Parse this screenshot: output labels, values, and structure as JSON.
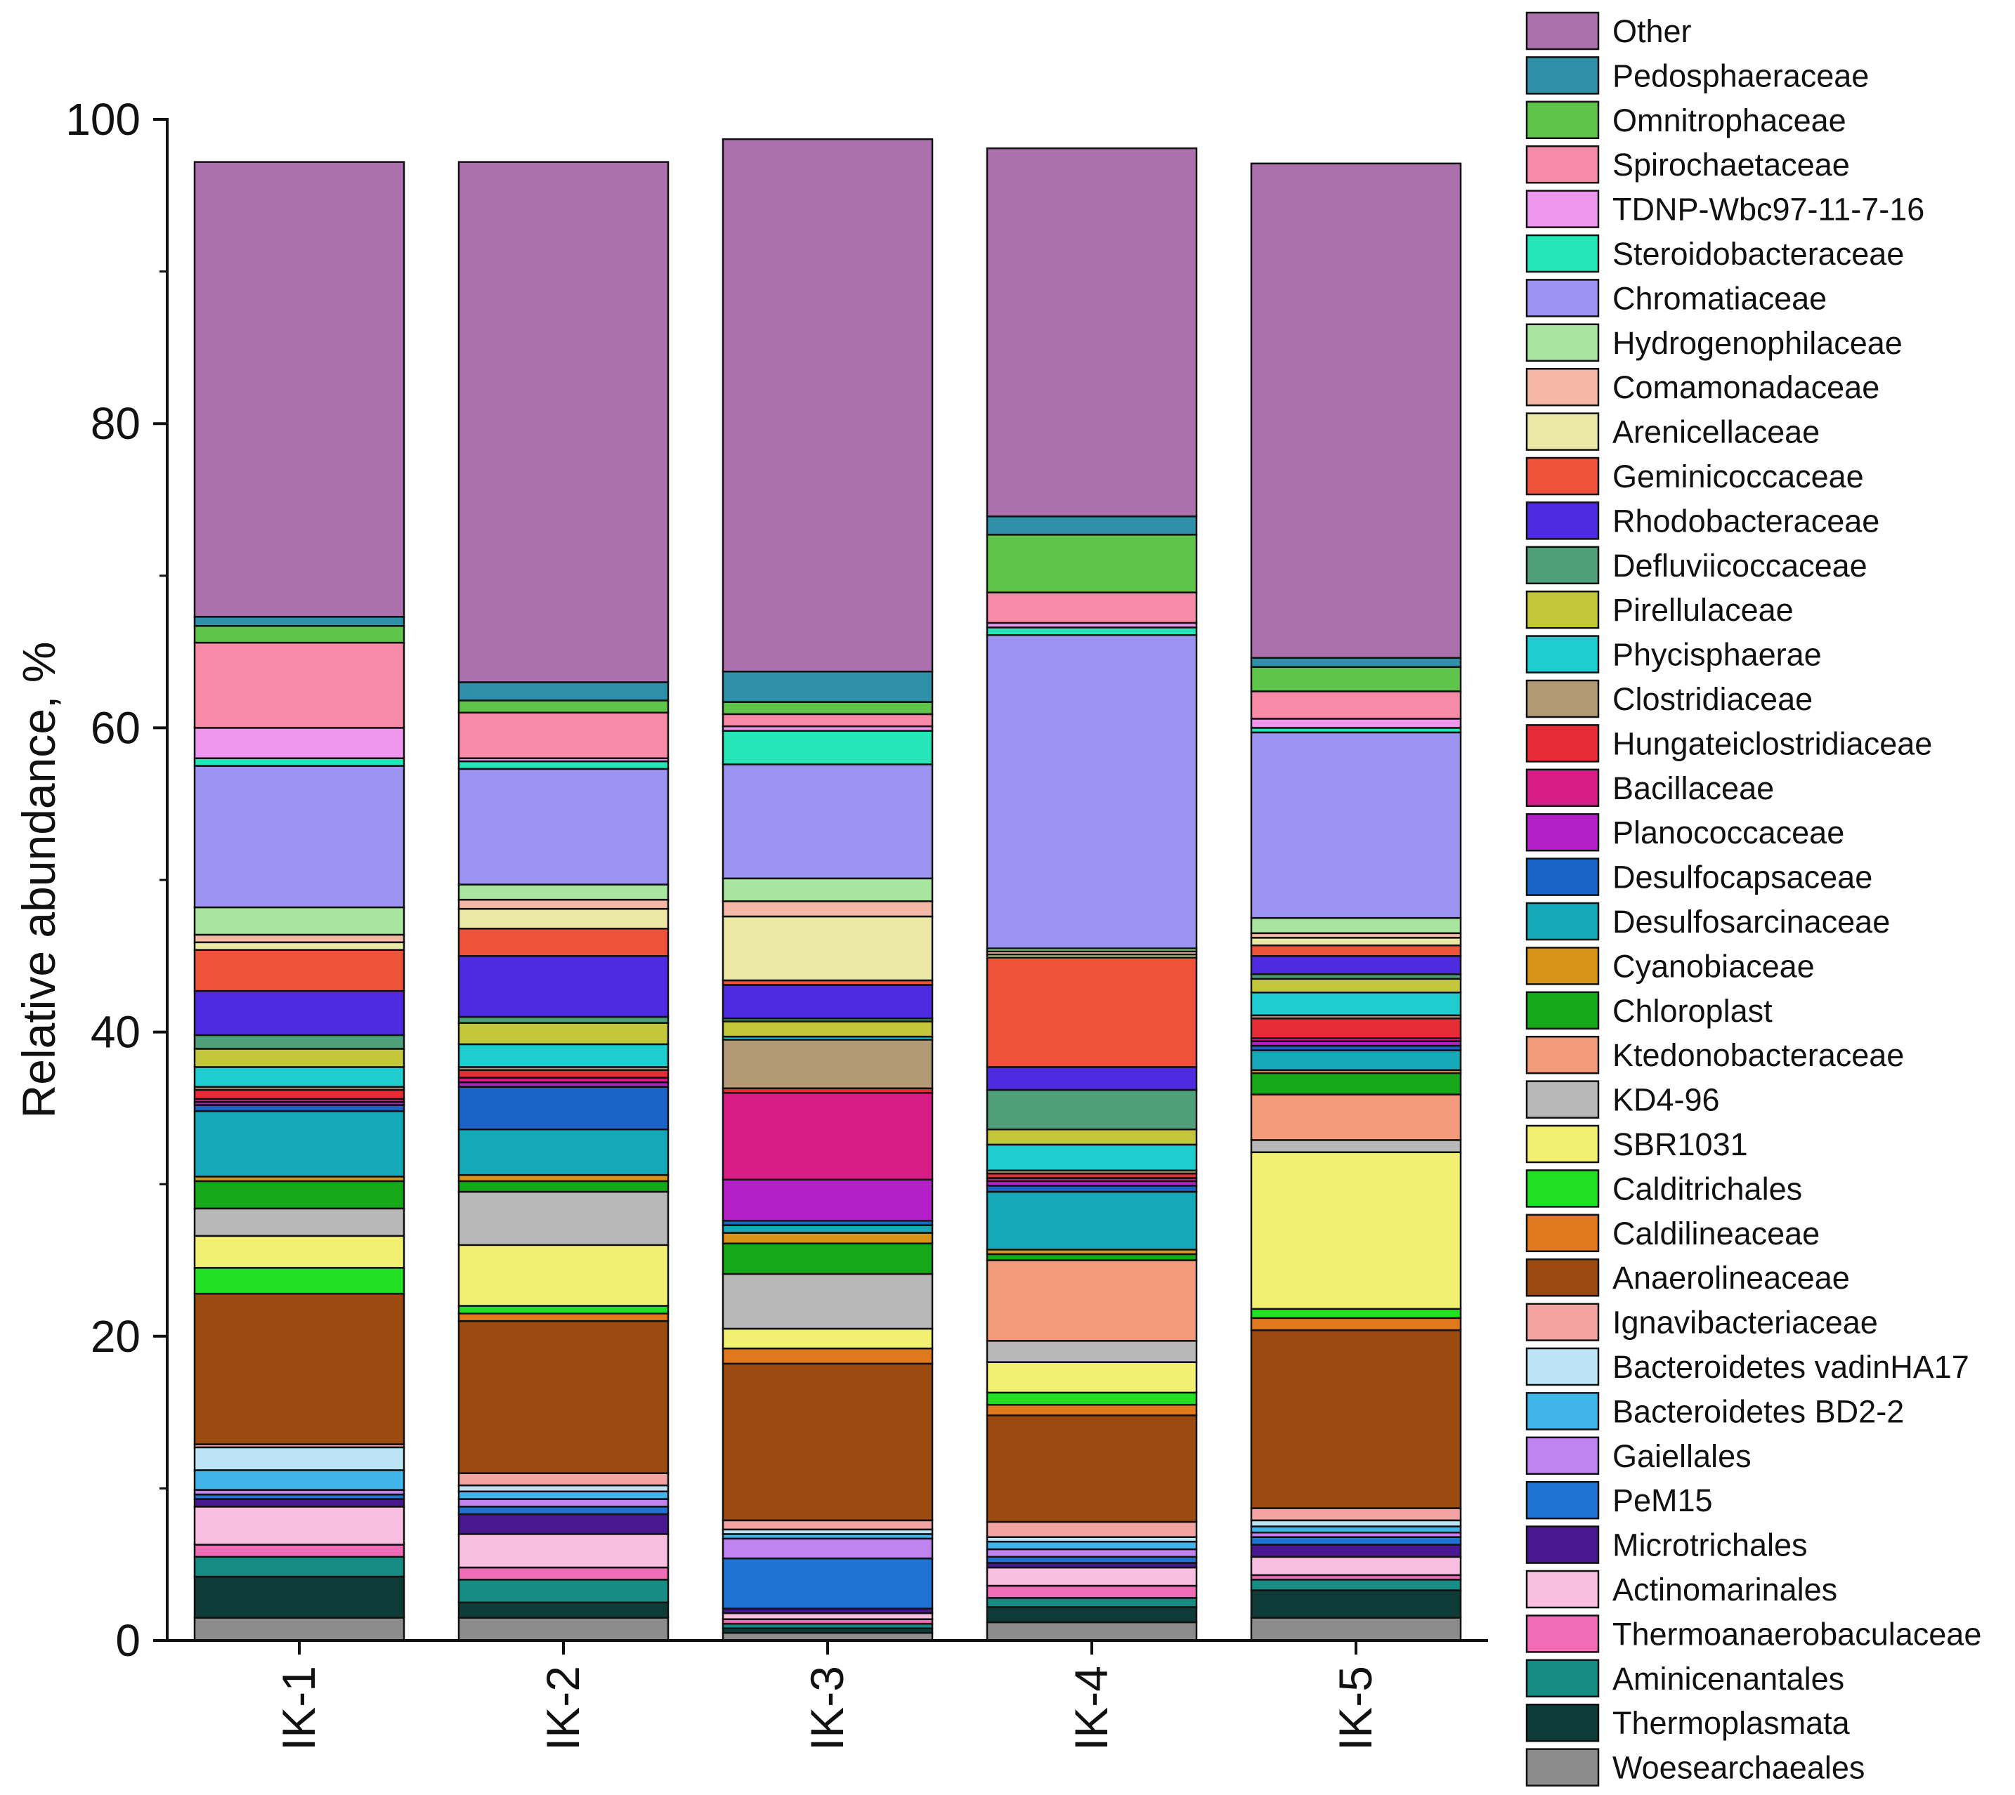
{
  "chart_data": {
    "type": "bar",
    "stacked": true,
    "categories": [
      "IK-1",
      "IK-2",
      "IK-3",
      "IK-4",
      "IK-5"
    ],
    "ylabel": "Relative abundance, %",
    "xlabel": "",
    "ylim": [
      0,
      100
    ],
    "yticks": [
      "0",
      "20",
      "40",
      "60",
      "80",
      "100"
    ],
    "ytick_values": [
      0,
      20,
      40,
      60,
      80,
      100
    ],
    "grid": false,
    "legend_position": "right",
    "series": [
      {
        "name": "Woesearchaeales",
        "color": "#8c8c8c",
        "values": [
          1.5,
          1.5,
          0.5,
          1.2,
          1.5
        ]
      },
      {
        "name": "Thermoplasmata",
        "color": "#0e3b38",
        "values": [
          2.7,
          1.0,
          0.3,
          1.0,
          1.8
        ]
      },
      {
        "name": "Aminicenantales",
        "color": "#178c85",
        "values": [
          1.3,
          1.5,
          0.3,
          0.6,
          0.7
        ]
      },
      {
        "name": "Thermoanaerobaculaceae",
        "color": "#f06cb6",
        "values": [
          0.8,
          0.8,
          0.3,
          0.8,
          0.3
        ]
      },
      {
        "name": "Actinomarinales",
        "color": "#f9bfe0",
        "values": [
          2.5,
          2.2,
          0.4,
          1.2,
          1.2
        ]
      },
      {
        "name": "Microtrichales",
        "color": "#4a1890",
        "values": [
          0.5,
          1.3,
          0.3,
          0.3,
          0.8
        ]
      },
      {
        "name": "PeM15",
        "color": "#1f73d2",
        "values": [
          0.3,
          0.5,
          3.3,
          0.4,
          0.5
        ]
      },
      {
        "name": "Gaiellales",
        "color": "#c084f0",
        "values": [
          0.3,
          0.5,
          1.3,
          0.5,
          0.3
        ]
      },
      {
        "name": "Bacteroidetes BD2-2",
        "color": "#41b4ea",
        "values": [
          1.3,
          0.5,
          0.3,
          0.5,
          0.4
        ]
      },
      {
        "name": "Bacteroidetes vadinHA17",
        "color": "#bde3f6",
        "values": [
          1.5,
          0.4,
          0.3,
          0.3,
          0.4
        ]
      },
      {
        "name": "Ignavibacteriaceae",
        "color": "#f4a3a3",
        "values": [
          0.2,
          0.8,
          0.6,
          1.0,
          0.8
        ]
      },
      {
        "name": "Anaerolineaceae",
        "color": "#9b4a10",
        "values": [
          9.9,
          10.0,
          10.3,
          7.0,
          11.7
        ]
      },
      {
        "name": "Caldilineaceae",
        "color": "#e0791b",
        "values": [
          0.0,
          0.5,
          1.0,
          0.7,
          0.8
        ]
      },
      {
        "name": "Calditrichales",
        "color": "#22e024",
        "values": [
          1.7,
          0.5,
          0.0,
          0.8,
          0.6
        ]
      },
      {
        "name": "SBR1031",
        "color": "#f2f070",
        "values": [
          2.1,
          4.0,
          1.3,
          2.0,
          10.3
        ]
      },
      {
        "name": "KD4-96",
        "color": "#b8b8b8",
        "values": [
          1.8,
          3.5,
          3.6,
          1.4,
          0.8
        ]
      },
      {
        "name": "Ktedonobacteraceae",
        "color": "#f39a7a",
        "values": [
          0.0,
          0.0,
          0.0,
          5.3,
          3.0
        ]
      },
      {
        "name": "Chloroplast",
        "color": "#17a81a",
        "values": [
          1.8,
          0.7,
          2.0,
          0.4,
          1.4
        ]
      },
      {
        "name": "Cyanobiaceae",
        "color": "#d89418",
        "values": [
          0.3,
          0.4,
          0.7,
          0.3,
          0.2
        ]
      },
      {
        "name": "Desulfosarcinaceae",
        "color": "#14a8b8",
        "values": [
          4.3,
          3.0,
          0.5,
          3.8,
          1.3
        ]
      },
      {
        "name": "Desulfocapsaceae",
        "color": "#1a64c8",
        "values": [
          0.4,
          2.8,
          0.3,
          0.4,
          0.3
        ]
      },
      {
        "name": "Planococcaceae",
        "color": "#b420c8",
        "values": [
          0.2,
          0.3,
          2.7,
          0.3,
          0.3
        ]
      },
      {
        "name": "Bacillaceae",
        "color": "#d81c86",
        "values": [
          0.2,
          0.3,
          5.7,
          0.2,
          0.2
        ]
      },
      {
        "name": "Hungateiclostridiaceae",
        "color": "#e62d37",
        "values": [
          0.6,
          0.5,
          0.3,
          0.3,
          1.3
        ]
      },
      {
        "name": "Clostridiaceae",
        "color": "#b39a76",
        "values": [
          0.2,
          0.2,
          3.2,
          0.2,
          0.2
        ]
      },
      {
        "name": "Phycisphaerae",
        "color": "#1fcdd0",
        "values": [
          1.3,
          1.5,
          0.2,
          1.7,
          1.5
        ]
      },
      {
        "name": "Pirellulaceae",
        "color": "#c2c83a",
        "values": [
          1.2,
          1.4,
          1.0,
          1.0,
          0.9
        ]
      },
      {
        "name": "Defluviicoccaceae",
        "color": "#4ea078",
        "values": [
          0.9,
          0.4,
          0.2,
          2.6,
          0.3
        ]
      },
      {
        "name": "Rhodobacteraceae",
        "color": "#4e2be0",
        "values": [
          2.9,
          4.0,
          2.2,
          1.5,
          1.2
        ]
      },
      {
        "name": "Geminicoccaceae",
        "color": "#ee5238",
        "values": [
          2.7,
          1.8,
          0.3,
          7.2,
          0.7
        ]
      },
      {
        "name": "Arenicellaceae",
        "color": "#ebe8a6",
        "values": [
          0.5,
          1.3,
          4.2,
          0.2,
          0.5
        ]
      },
      {
        "name": "Comamonadaceae",
        "color": "#f4b8a4",
        "values": [
          0.5,
          0.6,
          1.0,
          0.2,
          0.3
        ]
      },
      {
        "name": "Hydrogenophilaceae",
        "color": "#a8e6a0",
        "values": [
          1.8,
          1.0,
          1.5,
          0.2,
          1.0
        ]
      },
      {
        "name": "Chromatiaceae",
        "color": "#9c94f0",
        "values": [
          9.3,
          7.6,
          7.5,
          20.6,
          12.2
        ]
      },
      {
        "name": "Steroidobacteraceae",
        "color": "#26e6b8",
        "values": [
          0.5,
          0.5,
          2.2,
          0.5,
          0.3
        ]
      },
      {
        "name": "TDNP-Wbc97-11-7-16",
        "color": "#ee96ee",
        "values": [
          2.0,
          0.2,
          0.3,
          0.3,
          0.6
        ]
      },
      {
        "name": "Spirochaetaceae",
        "color": "#f78aa6",
        "values": [
          5.6,
          3.0,
          0.8,
          2.0,
          1.8
        ]
      },
      {
        "name": "Omnitrophaceae",
        "color": "#5ec44a",
        "values": [
          1.1,
          0.8,
          0.8,
          3.8,
          1.6
        ]
      },
      {
        "name": "Pedosphaeraceae",
        "color": "#2f90aa",
        "values": [
          0.6,
          1.2,
          2.0,
          1.2,
          0.6
        ]
      },
      {
        "name": "Other",
        "color": "#ac71ad",
        "values": [
          29.9,
          34.2,
          35.0,
          24.2,
          32.5
        ]
      }
    ]
  }
}
